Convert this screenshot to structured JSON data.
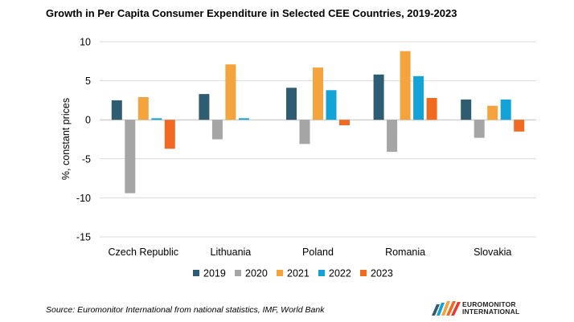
{
  "chart_data": {
    "type": "bar",
    "title": "Growth in Per Capita Consumer Expenditure in Selected CEE Countries, 2019-2023",
    "xlabel": "",
    "ylabel": "%, constant prices",
    "ylim": [
      -15,
      10
    ],
    "yticks": [
      10,
      5,
      0,
      -5,
      -10,
      -15
    ],
    "grid": true,
    "legend_position": "bottom",
    "categories": [
      "Czech Republic",
      "Lithuania",
      "Poland",
      "Romania",
      "Slovakia"
    ],
    "series": [
      {
        "name": "2019",
        "color": "#2e5d73",
        "values": [
          2.5,
          3.3,
          4.1,
          5.8,
          2.6
        ]
      },
      {
        "name": "2020",
        "color": "#a5a5a5",
        "values": [
          -9.4,
          -2.5,
          -3.1,
          -4.1,
          -2.3
        ]
      },
      {
        "name": "2021",
        "color": "#f5a33c",
        "values": [
          2.9,
          7.1,
          6.7,
          8.8,
          1.8
        ]
      },
      {
        "name": "2022",
        "color": "#14a3d6",
        "values": [
          0.2,
          0.2,
          3.8,
          5.6,
          2.6
        ]
      },
      {
        "name": "2023",
        "color": "#f26a21",
        "values": [
          -3.7,
          0,
          -0.7,
          2.8,
          -1.5
        ]
      }
    ]
  },
  "source": "Source: Euromonitor International from national statistics, IMF, World Bank",
  "logo": {
    "line1": "EUROMONITOR",
    "line2": "INTERNATIONAL"
  }
}
